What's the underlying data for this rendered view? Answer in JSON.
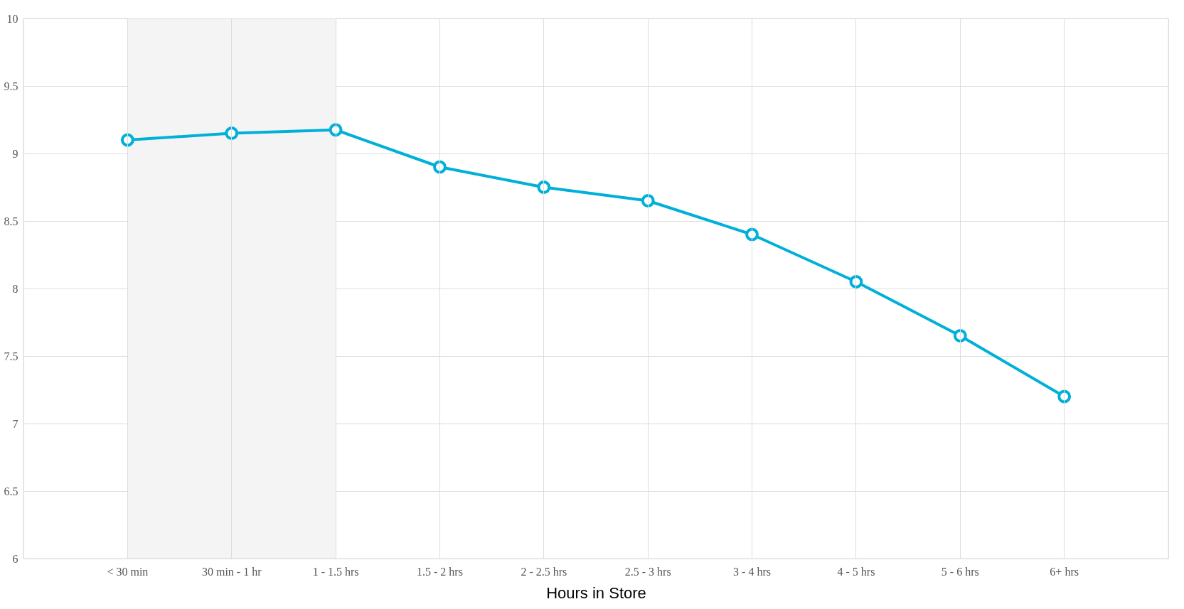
{
  "chart_data": {
    "type": "line",
    "xlabel": "Hours in Store",
    "categories": [
      "< 30 min",
      "30 min - 1 hr",
      "1 - 1.5 hrs",
      "1.5 - 2 hrs",
      "2 - 2.5 hrs",
      "2.5 - 3 hrs",
      "3 - 4 hrs",
      "4 - 5 hrs",
      "5 - 6 hrs",
      "6+ hrs"
    ],
    "series": [
      {
        "color": "#00b0d8",
        "values": [
          9.1,
          9.15,
          9.175,
          8.9,
          8.75,
          8.65,
          8.4,
          8.05,
          7.65,
          7.2
        ]
      }
    ],
    "ylim": [
      6,
      10
    ],
    "yticks": [
      6,
      6.5,
      7,
      7.5,
      8,
      8.5,
      9,
      9.5,
      10
    ],
    "bands": [
      {
        "axis": "x",
        "from": "< 30 min",
        "to": "1 - 1.5 hrs",
        "color": "#f4f4f4"
      }
    ],
    "grid": true,
    "marker": "circle",
    "line_style": "solid"
  }
}
